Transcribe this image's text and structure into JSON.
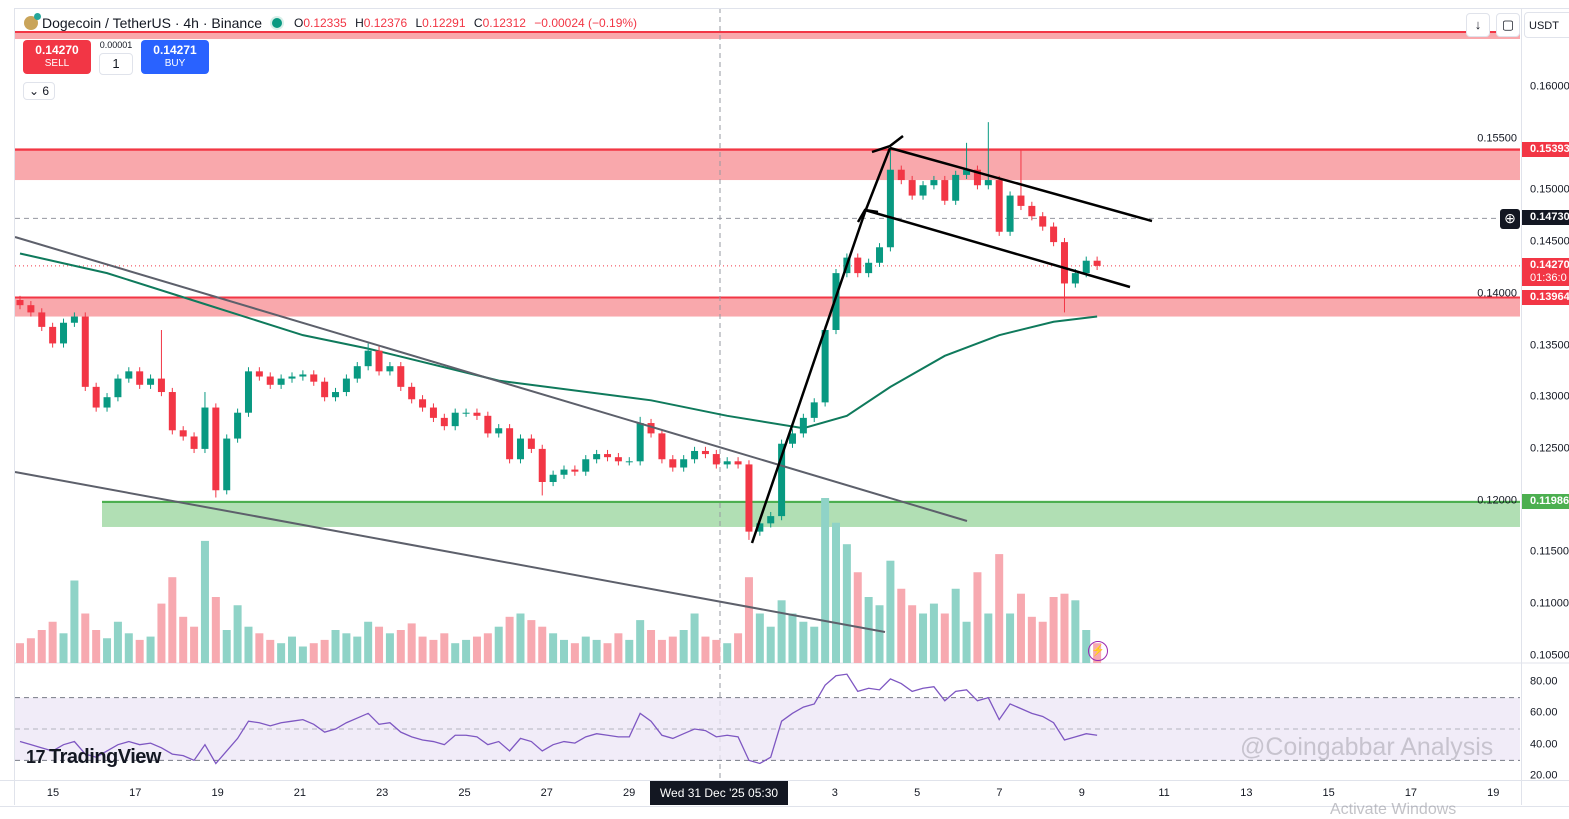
{
  "header": {
    "symbol": "Dogecoin / TetherUS · 4h · Binance",
    "o_label": "O",
    "o": "0.12335",
    "h_label": "H",
    "h": "0.12376",
    "l_label": "L",
    "l": "0.12291",
    "c_label": "C",
    "c": "0.12312",
    "change": "−0.00024 (−0.19%)"
  },
  "trade": {
    "sell_price": "0.14270",
    "sell_label": "SELL",
    "step": "0.00001",
    "quantity": "1",
    "buy_price": "0.14271",
    "buy_label": "BUY"
  },
  "indicators_toggle": "6",
  "currency": "USDT",
  "price_axis": {
    "ticks": [
      "0.16000",
      "0.15500",
      "0.15000",
      "0.14500",
      "0.14000",
      "0.13500",
      "0.13000",
      "0.12500",
      "0.12000",
      "0.11500",
      "0.11000",
      "0.10500"
    ],
    "tags": [
      {
        "value": "0.15393",
        "color": "#f23645"
      },
      {
        "value": "0.14730",
        "color": "#131722"
      },
      {
        "value": "0.14270",
        "sub": "01:36:0",
        "color": "#f23645"
      },
      {
        "value": "0.13964",
        "color": "#f23645"
      },
      {
        "value": "0.11986",
        "color": "#4caf50"
      }
    ]
  },
  "rsi_axis": {
    "ticks": [
      "80.00",
      "60.00",
      "40.00",
      "20.00"
    ]
  },
  "time_axis": {
    "ticks": [
      {
        "label": "15",
        "day": 0
      },
      {
        "label": "17",
        "day": 2
      },
      {
        "label": "19",
        "day": 4
      },
      {
        "label": "21",
        "day": 6
      },
      {
        "label": "23",
        "day": 8
      },
      {
        "label": "25",
        "day": 10
      },
      {
        "label": "27",
        "day": 12
      },
      {
        "label": "29",
        "day": 14
      },
      {
        "label": "3",
        "day": 19
      },
      {
        "label": "5",
        "day": 21
      },
      {
        "label": "7",
        "day": 23
      },
      {
        "label": "9",
        "day": 25
      },
      {
        "label": "11",
        "day": 27
      },
      {
        "label": "13",
        "day": 29
      },
      {
        "label": "15",
        "day": 31
      },
      {
        "label": "17",
        "day": 33
      },
      {
        "label": "19",
        "day": 35
      }
    ],
    "crosshair_label": "Wed 31 Dec '25   05:30"
  },
  "branding": {
    "logo": "TradingView",
    "watermark": "@Coingabbar Analysis",
    "os_notice": "Activate Windows"
  },
  "colors": {
    "up": "#089981",
    "down": "#f23645",
    "volume_up": "#8fd3c7",
    "volume_down": "#f7a9b0",
    "ma": "#0f7a5c",
    "rsi": "#7e57c2",
    "resistance_zone": "#f9a8ac",
    "support_zone": "#b1dfb4"
  },
  "chart_data": {
    "type": "candlestick",
    "symbol": "DOGE/USDT",
    "interval": "4h",
    "ylim": [
      0.1045,
      0.1645
    ],
    "close": [
      0.1389,
      0.1382,
      0.1368,
      0.1352,
      0.1372,
      0.1378,
      0.131,
      0.129,
      0.13,
      0.1318,
      0.1325,
      0.1312,
      0.1318,
      0.1305,
      0.1268,
      0.1262,
      0.125,
      0.129,
      0.121,
      0.126,
      0.1285,
      0.1325,
      0.132,
      0.1312,
      0.1318,
      0.132,
      0.1322,
      0.1315,
      0.13,
      0.1305,
      0.1318,
      0.133,
      0.1345,
      0.1325,
      0.133,
      0.131,
      0.1298,
      0.129,
      0.128,
      0.1272,
      0.1285,
      0.1285,
      0.1282,
      0.1265,
      0.127,
      0.124,
      0.126,
      0.125,
      0.1218,
      0.1225,
      0.123,
      0.1228,
      0.124,
      0.1245,
      0.1242,
      0.1238,
      0.1238,
      0.1275,
      0.1265,
      0.124,
      0.1232,
      0.124,
      0.1248,
      0.1245,
      0.1235,
      0.1238,
      0.1235,
      0.117,
      0.1178,
      0.1185,
      0.1255,
      0.1265,
      0.128,
      0.1295,
      0.1365,
      0.142,
      0.1435,
      0.142,
      0.143,
      0.1445,
      0.152,
      0.151,
      0.1495,
      0.1505,
      0.151,
      0.149,
      0.1515,
      0.152,
      0.1505,
      0.151,
      0.146,
      0.1495,
      0.1485,
      0.1475,
      0.1465,
      0.145,
      0.141,
      0.142,
      0.1432,
      0.1427
    ],
    "wick_extremes": {
      "13": {
        "h": 0.1365
      },
      "17": {
        "h": 0.1305
      },
      "18": {
        "l": 0.1203
      },
      "32": {
        "h": 0.1352
      },
      "48": {
        "l": 0.1205
      },
      "57": {
        "h": 0.1281
      },
      "67": {
        "l": 0.1162
      },
      "80": {
        "h": 0.1541
      },
      "87": {
        "h": 0.1546
      },
      "89": {
        "h": 0.1566
      },
      "92": {
        "h": 0.154
      },
      "96": {
        "l": 0.1382
      }
    },
    "volume_relative": [
      12,
      15,
      20,
      25,
      18,
      50,
      30,
      20,
      15,
      25,
      18,
      14,
      16,
      36,
      52,
      28,
      22,
      74,
      40,
      20,
      35,
      22,
      18,
      14,
      12,
      16,
      10,
      12,
      14,
      20,
      18,
      16,
      25,
      22,
      18,
      20,
      24,
      16,
      14,
      18,
      12,
      14,
      16,
      18,
      22,
      28,
      30,
      26,
      22,
      18,
      14,
      12,
      16,
      14,
      12,
      18,
      14,
      26,
      20,
      14,
      16,
      20,
      30,
      16,
      14,
      12,
      18,
      52,
      30,
      22,
      38,
      30,
      25,
      22,
      100,
      85,
      72,
      55,
      40,
      35,
      62,
      45,
      35,
      30,
      36,
      30,
      45,
      25,
      55,
      30,
      66,
      30,
      42,
      28,
      25,
      40,
      42,
      38,
      20,
      12
    ],
    "moving_average": [
      [
        0,
        0.1439
      ],
      [
        8,
        0.142
      ],
      [
        17,
        0.139
      ],
      [
        26,
        0.136
      ],
      [
        32,
        0.1347
      ],
      [
        44,
        0.1316
      ],
      [
        58,
        0.1297
      ],
      [
        65,
        0.1282
      ],
      [
        72,
        0.127
      ],
      [
        76,
        0.1282
      ],
      [
        80,
        0.131
      ],
      [
        85,
        0.134
      ],
      [
        90,
        0.136
      ],
      [
        95,
        0.1373
      ],
      [
        99,
        0.1378
      ]
    ],
    "rsi": {
      "ylim": [
        20,
        85
      ],
      "band": [
        30,
        70
      ],
      "mid": 50,
      "values": [
        42,
        40,
        38,
        36,
        40,
        42,
        34,
        32,
        36,
        40,
        42,
        40,
        41,
        38,
        34,
        33,
        30,
        40,
        28,
        36,
        44,
        55,
        54,
        52,
        54,
        55,
        56,
        53,
        48,
        50,
        54,
        57,
        60,
        53,
        54,
        48,
        45,
        43,
        42,
        40,
        46,
        46,
        45,
        40,
        42,
        36,
        44,
        42,
        36,
        40,
        42,
        41,
        45,
        47,
        46,
        45,
        45,
        60,
        55,
        46,
        44,
        47,
        50,
        49,
        45,
        46,
        45,
        30,
        28,
        32,
        55,
        60,
        64,
        66,
        78,
        84,
        85,
        74,
        76,
        75,
        82,
        79,
        74,
        76,
        77,
        68,
        74,
        75,
        68,
        70,
        56,
        66,
        63,
        60,
        58,
        54,
        43,
        45,
        47,
        46
      ]
    },
    "zones": [
      {
        "type": "resistance",
        "top": 0.1541,
        "bottom": 0.151,
        "line": 0.15393
      },
      {
        "type": "support",
        "top": 0.1397,
        "bottom": 0.1378,
        "line": 0.13964
      },
      {
        "type": "demand",
        "top": 0.12,
        "bottom": 0.11745,
        "line": 0.11986
      }
    ],
    "current_price": 0.1427,
    "crosshair_price": 0.1473
  }
}
